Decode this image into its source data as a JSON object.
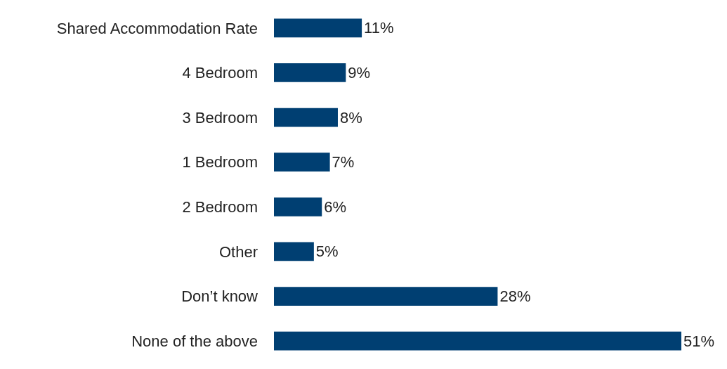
{
  "chart_data": {
    "type": "bar",
    "orientation": "horizontal",
    "categories": [
      "Shared Accommodation Rate",
      "4 Bedroom",
      "3 Bedroom",
      "1 Bedroom",
      "2 Bedroom",
      "Other",
      "Don’t know",
      "None of the above"
    ],
    "values": [
      11,
      9,
      8,
      7,
      6,
      5,
      28,
      51
    ],
    "value_labels": [
      "11%",
      "9%",
      "8%",
      "7%",
      "6%",
      "5%",
      "28%",
      "51%"
    ],
    "color": "#003f72"
  }
}
